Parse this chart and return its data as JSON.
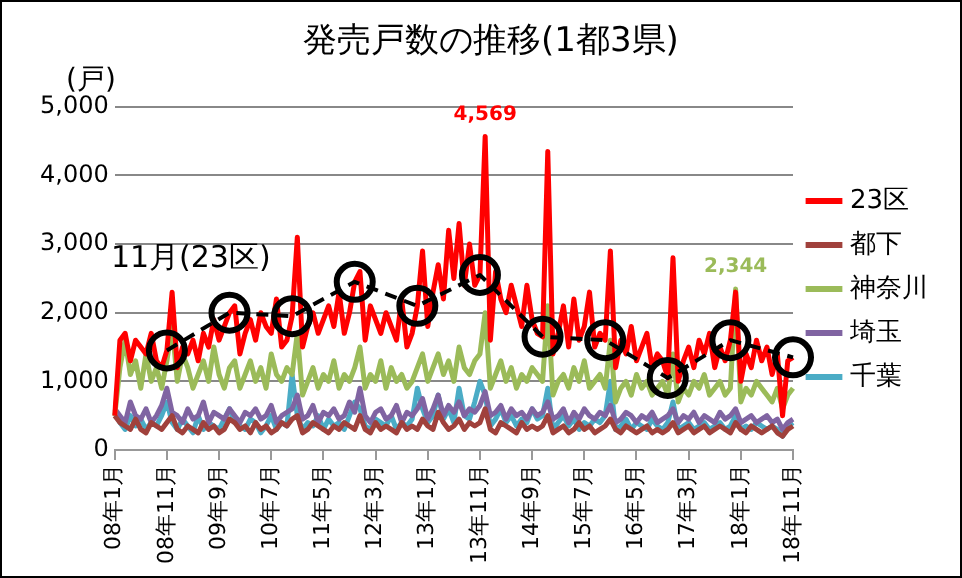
{
  "chart_data": {
    "type": "line",
    "title": "発売戸数の推移(1都3県)",
    "ylabel": "(戸)",
    "categories": [
      "08年1月",
      null,
      null,
      null,
      null,
      null,
      null,
      null,
      null,
      null,
      "08年11月",
      null,
      null,
      null,
      null,
      null,
      null,
      null,
      null,
      null,
      "09年9月",
      null,
      null,
      null,
      null,
      null,
      null,
      null,
      null,
      null,
      "10年7月",
      null,
      null,
      null,
      null,
      null,
      null,
      null,
      null,
      null,
      "11年5月",
      null,
      null,
      null,
      null,
      null,
      null,
      null,
      null,
      null,
      "12年3月",
      null,
      null,
      null,
      null,
      null,
      null,
      null,
      null,
      null,
      "13年1月",
      null,
      null,
      null,
      null,
      null,
      null,
      null,
      null,
      null,
      "13年11月",
      null,
      null,
      null,
      null,
      null,
      null,
      null,
      null,
      null,
      "14年9月",
      null,
      null,
      null,
      null,
      null,
      null,
      null,
      null,
      null,
      "15年7月",
      null,
      null,
      null,
      null,
      null,
      null,
      null,
      null,
      null,
      "16年5月",
      null,
      null,
      null,
      null,
      null,
      null,
      null,
      null,
      null,
      "17年3月",
      null,
      null,
      null,
      null,
      null,
      null,
      null,
      null,
      null,
      "18年1月",
      null,
      null,
      null,
      null,
      null,
      null,
      null,
      null,
      null,
      "18年11月"
    ],
    "series": [
      {
        "name": "23区",
        "color": "#ff0000",
        "type": "line",
        "marker": "none",
        "values": [
          500,
          1600,
          1700,
          1300,
          1600,
          1500,
          1400,
          1700,
          1300,
          1200,
          1450,
          2300,
          1200,
          1500,
          1400,
          1600,
          1300,
          1700,
          1500,
          1900,
          1600,
          1800,
          2000,
          2100,
          1400,
          1700,
          1900,
          1600,
          2000,
          1800,
          1700,
          2200,
          1500,
          1600,
          1950,
          3100,
          1500,
          1800,
          2000,
          1700,
          1900,
          2100,
          1800,
          2300,
          1700,
          2000,
          2450,
          2600,
          1600,
          2100,
          1900,
          1700,
          2000,
          1800,
          1600,
          2200,
          1500,
          1700,
          2100,
          2900,
          1800,
          2300,
          2700,
          2200,
          3200,
          2500,
          3300,
          2400,
          3000,
          2400,
          2550,
          4569,
          1600,
          2600,
          2200,
          2000,
          2400,
          2100,
          1800,
          2400,
          1900,
          1700,
          1650,
          4350,
          1400,
          1700,
          2100,
          1500,
          2200,
          1600,
          1800,
          2300,
          1500,
          1700,
          1600,
          2900,
          1200,
          1600,
          1400,
          1800,
          1300,
          1500,
          1700,
          1200,
          1400,
          1300,
          1050,
          2800,
          1000,
          1300,
          1500,
          1200,
          1600,
          1400,
          1700,
          1200,
          1500,
          1300,
          1600,
          2300,
          1000,
          1400,
          1200,
          1600,
          1300,
          1500,
          1100,
          1400,
          500,
          1300,
          1350
        ],
        "value_labels": [
          null,
          null,
          null,
          null,
          null,
          null,
          null,
          null,
          null,
          null,
          null,
          null,
          null,
          null,
          null,
          null,
          null,
          null,
          null,
          null,
          null,
          null,
          null,
          null,
          null,
          null,
          null,
          null,
          null,
          null,
          null,
          null,
          null,
          null,
          null,
          null,
          null,
          null,
          null,
          null,
          null,
          null,
          null,
          null,
          null,
          null,
          null,
          null,
          null,
          null,
          null,
          null,
          null,
          null,
          null,
          null,
          null,
          null,
          null,
          null,
          null,
          null,
          null,
          null,
          null,
          null,
          null,
          null,
          null,
          null,
          null,
          "4,569",
          null,
          null,
          null,
          null,
          null,
          null,
          null,
          null,
          null,
          null,
          null,
          null,
          null,
          null,
          null,
          null,
          null,
          null,
          null,
          null,
          null,
          null,
          null,
          null,
          null,
          null,
          null,
          null,
          null,
          null,
          null,
          null,
          null,
          null,
          null,
          null,
          null,
          null,
          null,
          null,
          null,
          null,
          null,
          null,
          null,
          null,
          null,
          null,
          null,
          null,
          null,
          null,
          null,
          null,
          null,
          null,
          null,
          null,
          null
        ]
      },
      {
        "name": "都下",
        "color": "#a0413c",
        "type": "line",
        "marker": "none",
        "values": [
          500,
          400,
          350,
          300,
          450,
          300,
          250,
          400,
          350,
          300,
          400,
          500,
          300,
          250,
          350,
          300,
          250,
          400,
          300,
          350,
          250,
          300,
          450,
          400,
          300,
          350,
          250,
          400,
          300,
          350,
          250,
          300,
          400,
          350,
          450,
          500,
          250,
          300,
          400,
          350,
          300,
          250,
          350,
          300,
          400,
          350,
          300,
          500,
          300,
          250,
          400,
          300,
          350,
          300,
          250,
          400,
          300,
          350,
          300,
          450,
          350,
          300,
          550,
          400,
          300,
          350,
          450,
          300,
          400,
          350,
          400,
          600,
          300,
          250,
          400,
          350,
          300,
          250,
          400,
          300,
          350,
          300,
          350,
          500,
          250,
          300,
          350,
          250,
          300,
          400,
          300,
          350,
          250,
          300,
          350,
          450,
          300,
          250,
          350,
          300,
          250,
          300,
          350,
          250,
          300,
          250,
          300,
          400,
          250,
          300,
          350,
          250,
          300,
          350,
          250,
          300,
          350,
          300,
          250,
          400,
          300,
          250,
          350,
          300,
          250,
          300,
          350,
          250,
          200,
          300,
          350
        ]
      },
      {
        "name": "神奈川",
        "color": "#9bbb59",
        "type": "line",
        "marker": "none",
        "values": [
          500,
          1200,
          1600,
          1100,
          1300,
          900,
          1400,
          1000,
          1200,
          900,
          1300,
          1800,
          1000,
          1400,
          1200,
          900,
          1100,
          1300,
          1000,
          1500,
          1100,
          900,
          1200,
          1300,
          900,
          1100,
          1300,
          1000,
          1200,
          900,
          1400,
          1100,
          1000,
          1200,
          1100,
          1700,
          800,
          1000,
          1200,
          900,
          1100,
          1000,
          1300,
          900,
          1100,
          1000,
          1200,
          1500,
          900,
          1100,
          1000,
          1300,
          900,
          1200,
          1000,
          1100,
          900,
          1000,
          1200,
          1400,
          1000,
          1200,
          1400,
          1100,
          1300,
          1000,
          1500,
          1200,
          1100,
          1300,
          1400,
          2000,
          900,
          1100,
          1300,
          1000,
          1200,
          900,
          1100,
          1000,
          1200,
          1100,
          1000,
          2100,
          800,
          1000,
          1100,
          900,
          1200,
          1000,
          1300,
          900,
          1000,
          1100,
          900,
          1600,
          700,
          900,
          1000,
          800,
          1100,
          900,
          1000,
          800,
          900,
          1000,
          800,
          1400,
          700,
          900,
          800,
          1000,
          900,
          1100,
          800,
          900,
          1000,
          800,
          900,
          2344,
          700,
          900,
          800,
          1000,
          900,
          800,
          700,
          900,
          600,
          800,
          900
        ],
        "value_labels": [
          null,
          null,
          null,
          null,
          null,
          null,
          null,
          null,
          null,
          null,
          null,
          null,
          null,
          null,
          null,
          null,
          null,
          null,
          null,
          null,
          null,
          null,
          null,
          null,
          null,
          null,
          null,
          null,
          null,
          null,
          null,
          null,
          null,
          null,
          null,
          null,
          null,
          null,
          null,
          null,
          null,
          null,
          null,
          null,
          null,
          null,
          null,
          null,
          null,
          null,
          null,
          null,
          null,
          null,
          null,
          null,
          null,
          null,
          null,
          null,
          null,
          null,
          null,
          null,
          null,
          null,
          null,
          null,
          null,
          null,
          null,
          null,
          null,
          null,
          null,
          null,
          null,
          null,
          null,
          null,
          null,
          null,
          null,
          null,
          null,
          null,
          null,
          null,
          null,
          null,
          null,
          null,
          null,
          null,
          null,
          null,
          null,
          null,
          null,
          null,
          null,
          null,
          null,
          null,
          null,
          null,
          null,
          null,
          null,
          null,
          null,
          null,
          null,
          null,
          null,
          null,
          null,
          null,
          null,
          "2,344",
          null,
          null,
          null,
          null,
          null,
          null,
          null,
          null,
          null,
          null,
          null
        ]
      },
      {
        "name": "埼玉",
        "color": "#8064a2",
        "type": "line",
        "marker": "none",
        "values": [
          600,
          500,
          400,
          700,
          500,
          450,
          600,
          400,
          500,
          650,
          900,
          550,
          500,
          400,
          600,
          450,
          500,
          700,
          400,
          550,
          500,
          450,
          600,
          500,
          400,
          550,
          500,
          600,
          450,
          500,
          650,
          400,
          500,
          550,
          600,
          800,
          450,
          500,
          650,
          400,
          550,
          500,
          600,
          450,
          500,
          700,
          550,
          900,
          500,
          400,
          550,
          600,
          450,
          500,
          650,
          400,
          550,
          500,
          600,
          750,
          450,
          600,
          800,
          500,
          650,
          550,
          700,
          500,
          600,
          550,
          650,
          850,
          500,
          550,
          650,
          450,
          600,
          500,
          550,
          450,
          600,
          500,
          550,
          700,
          450,
          500,
          600,
          400,
          550,
          450,
          600,
          500,
          450,
          550,
          500,
          650,
          400,
          450,
          550,
          500,
          400,
          500,
          450,
          550,
          400,
          450,
          500,
          600,
          400,
          500,
          450,
          550,
          400,
          500,
          450,
          400,
          550,
          450,
          500,
          600,
          400,
          450,
          500,
          400,
          450,
          500,
          400,
          450,
          300,
          400,
          450
        ]
      },
      {
        "name": "千葉",
        "color": "#4bacc6",
        "type": "line",
        "marker": "none",
        "values": [
          550,
          400,
          300,
          500,
          350,
          450,
          300,
          400,
          350,
          500,
          700,
          400,
          300,
          450,
          350,
          250,
          500,
          300,
          400,
          350,
          300,
          450,
          600,
          400,
          350,
          300,
          450,
          400,
          250,
          350,
          500,
          300,
          400,
          350,
          1100,
          500,
          300,
          400,
          350,
          500,
          300,
          450,
          350,
          400,
          300,
          500,
          700,
          600,
          350,
          300,
          450,
          400,
          350,
          500,
          300,
          400,
          350,
          450,
          900,
          600,
          400,
          500,
          800,
          450,
          600,
          400,
          900,
          500,
          450,
          700,
          1000,
          800,
          350,
          450,
          600,
          400,
          500,
          350,
          450,
          400,
          600,
          450,
          500,
          900,
          300,
          400,
          500,
          350,
          450,
          300,
          400,
          350,
          450,
          400,
          500,
          1000,
          300,
          350,
          450,
          300,
          400,
          350,
          300,
          450,
          350,
          300,
          400,
          700,
          300,
          350,
          400,
          300,
          350,
          400,
          300,
          350,
          400,
          300,
          350,
          500,
          300,
          350,
          300,
          400,
          350,
          300,
          350,
          300,
          200,
          350,
          400
        ]
      },
      {
        "name": "11月(23区)",
        "color": "#000000",
        "type": "line",
        "marker": "circle",
        "line_style": "dashed",
        "values": [
          null,
          null,
          null,
          null,
          null,
          null,
          null,
          null,
          null,
          null,
          1450,
          null,
          null,
          null,
          null,
          null,
          null,
          null,
          null,
          null,
          null,
          null,
          2000,
          null,
          null,
          null,
          null,
          null,
          null,
          null,
          null,
          null,
          null,
          null,
          1950,
          null,
          null,
          null,
          null,
          null,
          null,
          null,
          null,
          null,
          null,
          null,
          2450,
          null,
          null,
          null,
          null,
          null,
          null,
          null,
          null,
          null,
          null,
          null,
          2100,
          null,
          null,
          null,
          null,
          null,
          null,
          null,
          null,
          null,
          null,
          null,
          2550,
          null,
          null,
          null,
          null,
          null,
          null,
          null,
          null,
          null,
          null,
          null,
          1650,
          null,
          null,
          null,
          null,
          null,
          null,
          null,
          null,
          null,
          null,
          null,
          1600,
          null,
          null,
          null,
          null,
          null,
          null,
          null,
          null,
          null,
          null,
          null,
          1050,
          null,
          null,
          null,
          null,
          null,
          null,
          null,
          null,
          null,
          null,
          null,
          1600,
          null,
          null,
          null,
          null,
          null,
          null,
          null,
          null,
          null,
          null,
          null,
          1350
        ]
      }
    ],
    "ylim": [
      0,
      5000
    ],
    "yticks": [
      0,
      {
        "value": 1000,
        "label": "1,000"
      },
      {
        "value": 2000,
        "label": "2,000"
      },
      {
        "value": 3000,
        "label": "3,000"
      },
      {
        "value": 4000,
        "label": "4,000"
      },
      {
        "value": 5000,
        "label": "5,000"
      }
    ],
    "grid": "y",
    "legend": "right"
  }
}
